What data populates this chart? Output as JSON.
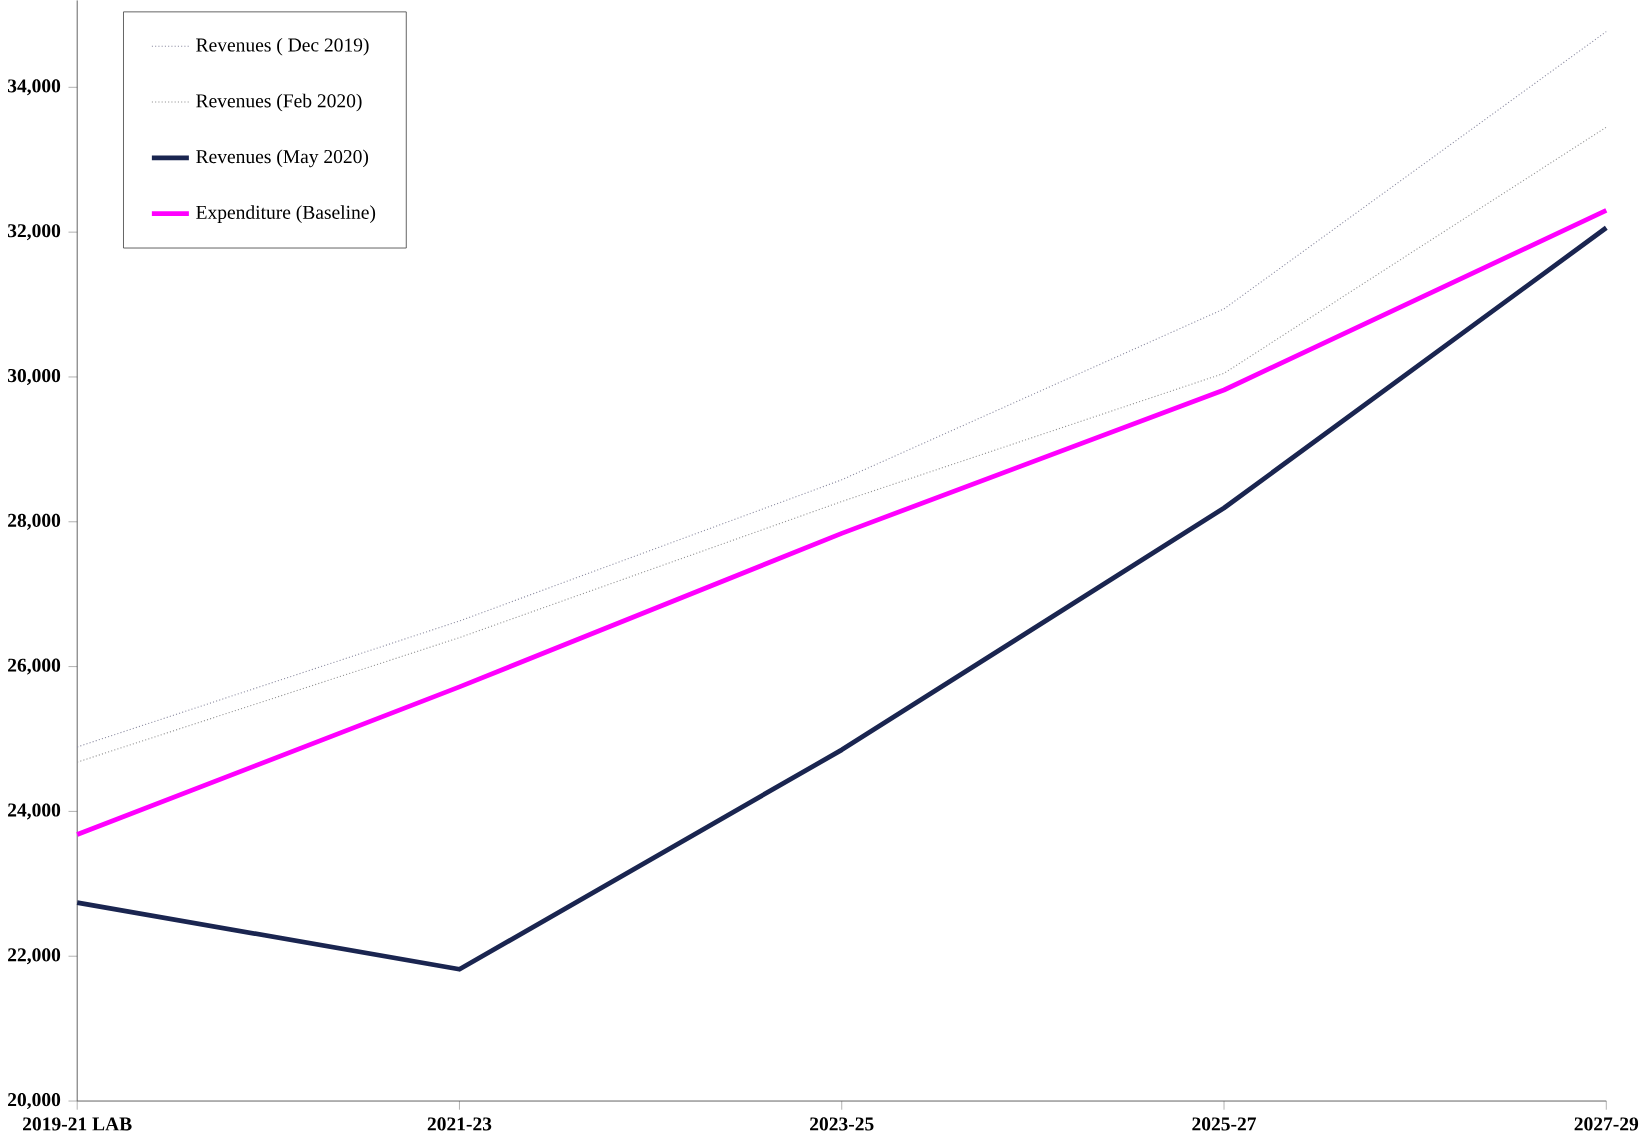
{
  "chart_data": {
    "type": "line",
    "categories": [
      "2019-21 LAB",
      "2021-23",
      "2023-25",
      "2025-27",
      "2027-29"
    ],
    "series": [
      {
        "name": "Revenues ( Dec 2019)",
        "color": "#8a8aa0",
        "line_style": "dotted",
        "values": [
          24890,
          26630,
          28580,
          30940,
          34770
        ]
      },
      {
        "name": "Revenues (Feb 2020)",
        "color": "#909090",
        "line_style": "dotted",
        "values": [
          24680,
          26400,
          28280,
          30050,
          33450
        ]
      },
      {
        "name": "Revenues (May 2020)",
        "color": "#1a2550",
        "line_style": "solid",
        "values": [
          22740,
          21820,
          24850,
          28190,
          32060
        ]
      },
      {
        "name": "Expenditure (Baseline)",
        "color": "#ff00ff",
        "line_style": "solid",
        "values": [
          23680,
          25720,
          27840,
          29820,
          32300
        ]
      }
    ],
    "ylim": [
      20000,
      35200
    ],
    "yticks": [
      {
        "value": 20000,
        "label": "20,000"
      },
      {
        "value": 22000,
        "label": "22,000"
      },
      {
        "value": 24000,
        "label": "24,000"
      },
      {
        "value": 26000,
        "label": "26,000"
      },
      {
        "value": 28000,
        "label": "28,000"
      },
      {
        "value": 30000,
        "label": "30,000"
      },
      {
        "value": 32000,
        "label": "32,000"
      },
      {
        "value": 34000,
        "label": "34,000"
      }
    ],
    "grid": false,
    "legend": "top left",
    "marker": "none"
  }
}
